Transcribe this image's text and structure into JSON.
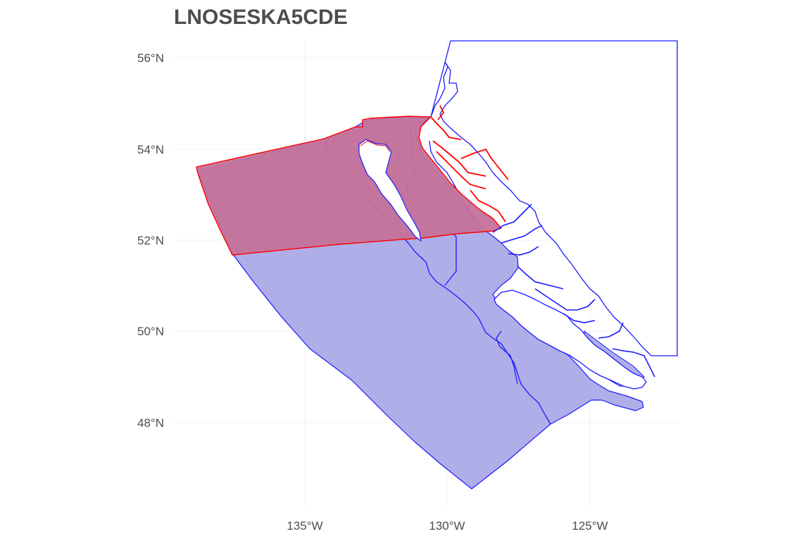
{
  "title": "LNOSESKA5CDE",
  "axes": {
    "y_ticks": [
      "56°N",
      "54°N",
      "52°N",
      "50°N",
      "48°N"
    ],
    "x_ticks": [
      "135°W",
      "130°W",
      "125°W"
    ]
  },
  "legend": null,
  "layers": [
    {
      "name": "management-areas",
      "fill": "#b0aee8",
      "stroke": "#1a1aff"
    },
    {
      "name": "selected-area",
      "fill": "#c4729a",
      "stroke": "#ff0000"
    },
    {
      "name": "coastline",
      "fill": "#ffffff",
      "stroke": "#1a1aff"
    }
  ],
  "colors": {
    "blue_fill": "#b0aee8",
    "blue_stroke": "#1a1aff",
    "red_fill": "#c4729a",
    "red_stroke": "#ff0000",
    "grid": "#ebebeb"
  }
}
